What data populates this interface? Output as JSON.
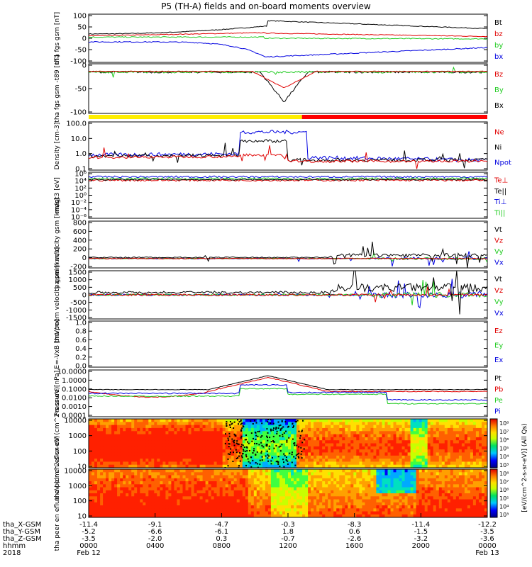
{
  "title": "P5 (TH-A) fields and on-board moments overview",
  "colors": {
    "black": "#000000",
    "red": "#e00000",
    "green": "#22cc22",
    "blue": "#0000e0",
    "yellow": "#ffee00",
    "barRed": "#ff0000"
  },
  "chart_data": [
    {
      "type": "line",
      "ylabel": "tha fgs gsm [nT]",
      "ylim": [
        -100,
        100
      ],
      "yticks": [
        "100",
        "50",
        "0",
        "-50",
        "-100"
      ],
      "series": [
        {
          "name": "Bt",
          "color": "black"
        },
        {
          "name": "bz",
          "color": "red"
        },
        {
          "name": "by",
          "color": "green"
        },
        {
          "name": "bx",
          "color": "blue"
        }
      ]
    },
    {
      "type": "line",
      "ylabel": "tha fgs gsm -t89 [nT]",
      "ylim": [
        -125,
        25
      ],
      "yticks": [
        "0",
        "-50",
        "-100"
      ],
      "series": [
        {
          "name": "Bz",
          "color": "red"
        },
        {
          "name": "By",
          "color": "green"
        },
        {
          "name": "Bx",
          "color": "black"
        }
      ]
    },
    {
      "type": "line",
      "ylabel": "Density [cm-3]",
      "ylim": [
        0.03,
        200
      ],
      "scale": "log",
      "yticks": [
        "100.0",
        "10.0",
        "1.0",
        "0.1"
      ],
      "series": [
        {
          "name": "Ne",
          "color": "red"
        },
        {
          "name": "Ni",
          "color": "black"
        },
        {
          "name": "Npot",
          "color": "blue"
        }
      ]
    },
    {
      "type": "line",
      "ylabel": "magt3 [eV]",
      "scale": "log",
      "yticks": [
        "10⁶",
        "10⁴",
        "10²",
        "10⁰",
        "10⁻²",
        "10⁻⁴",
        "10⁻⁶"
      ],
      "series": [
        {
          "name": "Te⊥",
          "color": "red"
        },
        {
          "name": "Te||",
          "color": "black"
        },
        {
          "name": "Ti⊥",
          "color": "blue"
        },
        {
          "name": "Ti||",
          "color": "green"
        }
      ]
    },
    {
      "type": "line",
      "ylabel": "tha peim velocity gsm [km/s]",
      "ylim": [
        -200,
        800
      ],
      "yticks": [
        "800",
        "600",
        "400",
        "200",
        "0",
        "-200"
      ],
      "series": [
        {
          "name": "Vt",
          "color": "black"
        },
        {
          "name": "Vz",
          "color": "red"
        },
        {
          "name": "Vy",
          "color": "green"
        },
        {
          "name": "Vx",
          "color": "blue"
        }
      ]
    },
    {
      "type": "line",
      "ylabel": "tha peem velocity gsm [km/s]",
      "ylim": [
        -1500,
        1500
      ],
      "yticks": [
        "1500",
        "1000",
        "500",
        "0",
        "-500",
        "-1000",
        "-1500"
      ],
      "series": [
        {
          "name": "Vt",
          "color": "black"
        },
        {
          "name": "Vz",
          "color": "red"
        },
        {
          "name": "Vy",
          "color": "green"
        },
        {
          "name": "Vx",
          "color": "blue"
        }
      ]
    },
    {
      "type": "line",
      "ylabel": "E=-VxB [mV/m]",
      "ylim": [
        0,
        1
      ],
      "yticks": [
        "1.0",
        "0.8",
        "0.6",
        "0.4",
        "0.2",
        "0.0"
      ],
      "series": [
        {
          "name": "Ez",
          "color": "red"
        },
        {
          "name": "Ey",
          "color": "green"
        },
        {
          "name": "Ex",
          "color": "blue"
        }
      ]
    },
    {
      "type": "line",
      "ylabel": "Pressure [nPa]",
      "scale": "log",
      "ylim": [
        0.0001,
        10
      ],
      "yticks": [
        "10.0000",
        "1.0000",
        "0.1000",
        "0.0100",
        "0.0010",
        "0.0001"
      ],
      "series": [
        {
          "name": "Pt",
          "color": "black"
        },
        {
          "name": "Pb",
          "color": "red"
        },
        {
          "name": "Pe",
          "color": "green"
        },
        {
          "name": "Pi",
          "color": "blue"
        }
      ]
    },
    {
      "type": "heatmap",
      "ylabel": "tha peir en eflux eV (cm^2-s-sr-eV)",
      "scale": "log",
      "yticks": [
        "10000",
        "1000",
        "100",
        "10"
      ]
    },
    {
      "type": "heatmap",
      "ylabel": "tha peer en eflux eV (cm^2-s-sr-eV)",
      "scale": "log",
      "yticks": [
        "10000",
        "1000",
        "100",
        "10"
      ]
    }
  ],
  "colorbars": [
    {
      "ticks": [
        "10⁸",
        "10⁷",
        "10⁶",
        "10⁵",
        "10⁴",
        "10³"
      ]
    },
    {
      "ticks": [
        "10⁸",
        "10⁷",
        "10⁶",
        "10⁵",
        "10⁴",
        "10³"
      ]
    }
  ],
  "colorbar_label": "[eV/(cm^2-s-sr-eV)] (All Qs)",
  "xaxis": {
    "rows": [
      {
        "label": "tha_X-GSM",
        "values": [
          "-11.4",
          "-9.1",
          "-4.7",
          "-0.3",
          "-8.3",
          "-11.4",
          "-12.2"
        ]
      },
      {
        "label": "tha_Y-GSM",
        "values": [
          "-5.2",
          "-6.6",
          "-6.1",
          "1.8",
          "0.6",
          "-1.5",
          "-3.5"
        ]
      },
      {
        "label": "tha_Z-GSM",
        "values": [
          "-3.5",
          "-2.0",
          "0.3",
          "-0.7",
          "-2.6",
          "-3.2",
          "-3.6"
        ]
      },
      {
        "label": "hhmm",
        "values": [
          "0000",
          "0400",
          "0800",
          "1200",
          "1600",
          "2000",
          "0000"
        ]
      }
    ],
    "year": "2018",
    "date_start": "Feb 12",
    "date_end": "Feb 13"
  }
}
